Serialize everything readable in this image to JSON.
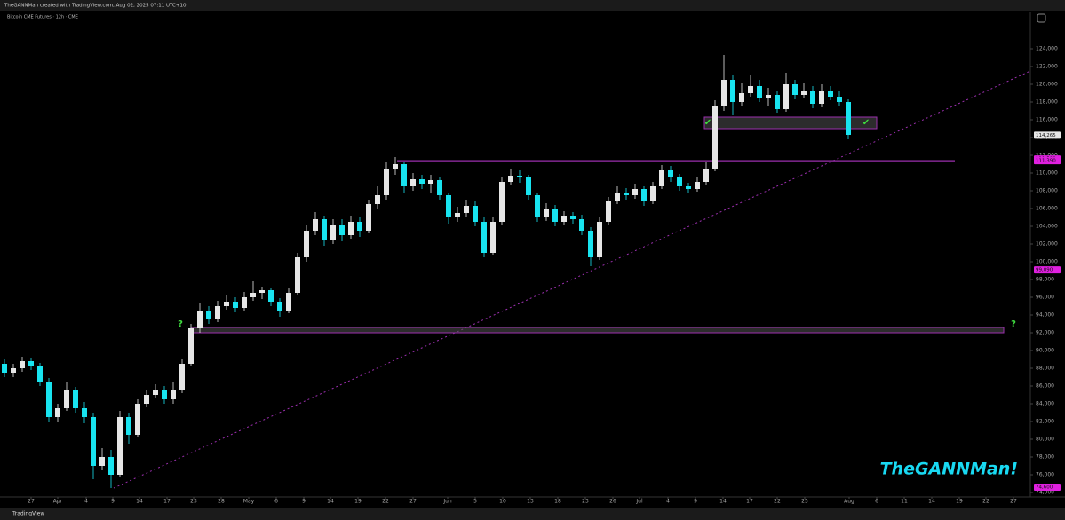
{
  "header": {
    "author_line": "TheGANNMan created with TradingView.com, Aug 02, 2025 07:11 UTC+10",
    "symbol": "Bitcoin CME Futures · 12h · CME"
  },
  "chart_data": {
    "type": "candlestick",
    "up_color": "#e6e6e6",
    "down_color": "#18e4f0",
    "grid": false,
    "xlim": [
      0,
      115.5
    ],
    "ylim": [
      73500,
      125000
    ],
    "open": [
      88500,
      87500,
      88000,
      88800,
      88200,
      86500,
      82500,
      83500,
      85500,
      83500,
      82500,
      77000,
      78000,
      76000,
      82500,
      80500,
      84000,
      85000,
      85500,
      84500,
      85500,
      88500,
      92500,
      94500,
      93500,
      95000,
      95500,
      94800,
      96000,
      96500,
      96800,
      95500,
      94500,
      96500,
      100500,
      103500,
      104800,
      102500,
      104200,
      103000,
      104500,
      103500,
      106500,
      107500,
      110500,
      111000,
      108500,
      109300,
      108800,
      109200,
      107500,
      105000,
      105500,
      106300,
      104500,
      101000,
      104500,
      109000,
      109700,
      109500,
      107500,
      105000,
      106000,
      104500,
      105200,
      104800,
      103500,
      100500,
      104500,
      106800,
      107800,
      107500,
      108200,
      106800,
      108500,
      110300,
      109500,
      108500,
      108200,
      109000,
      110500,
      117500,
      120500,
      118000,
      119000,
      119800,
      118500,
      118800,
      117200,
      120000,
      118800,
      119200,
      117800,
      119300,
      118600,
      118000
    ],
    "high": [
      89000,
      88500,
      89300,
      89200,
      88600,
      86900,
      84000,
      86500,
      85900,
      84200,
      83000,
      79000,
      78800,
      83200,
      83000,
      84500,
      85600,
      86200,
      86000,
      86500,
      89000,
      93000,
      95300,
      95000,
      95600,
      96200,
      96000,
      96600,
      97800,
      97200,
      97000,
      95900,
      97000,
      101000,
      104200,
      105600,
      105200,
      104800,
      104800,
      105200,
      105000,
      107000,
      108500,
      111200,
      111800,
      111300,
      110000,
      109800,
      109800,
      109500,
      107800,
      106200,
      107000,
      106800,
      105000,
      105000,
      109500,
      110500,
      110300,
      109800,
      107800,
      106600,
      106400,
      105700,
      105600,
      105300,
      103900,
      105000,
      107300,
      108500,
      108300,
      108800,
      108500,
      109000,
      110900,
      110800,
      109900,
      108900,
      109500,
      111200,
      118200,
      123300,
      121000,
      120200,
      121000,
      120500,
      119600,
      119300,
      121300,
      120500,
      120200,
      119800,
      120000,
      119800,
      119200,
      118300
    ],
    "low": [
      87000,
      87000,
      87600,
      87800,
      86000,
      82000,
      82000,
      83200,
      83000,
      81800,
      75500,
      76500,
      74500,
      75800,
      79500,
      80200,
      83600,
      84600,
      84000,
      84000,
      85200,
      88200,
      92000,
      93000,
      93200,
      94600,
      94300,
      94500,
      95600,
      95800,
      95000,
      93800,
      94200,
      96200,
      100000,
      103000,
      101800,
      102000,
      102300,
      102600,
      102800,
      103200,
      106000,
      107000,
      109800,
      107800,
      108000,
      108200,
      107800,
      107000,
      104300,
      104500,
      105000,
      104000,
      100500,
      100800,
      104200,
      108600,
      108900,
      107000,
      104500,
      104600,
      104000,
      104100,
      104300,
      103000,
      99500,
      100200,
      104200,
      106500,
      107000,
      107100,
      106300,
      106500,
      108200,
      109000,
      108000,
      107800,
      107900,
      108700,
      110200,
      117000,
      116500,
      117600,
      118600,
      118000,
      117500,
      116800,
      116900,
      118300,
      118400,
      117300,
      117400,
      118200,
      117500,
      113800
    ],
    "close": [
      87500,
      88000,
      88800,
      88200,
      86500,
      82500,
      83500,
      85500,
      83500,
      82500,
      77000,
      78000,
      76000,
      82500,
      80500,
      84000,
      85000,
      85500,
      84500,
      85500,
      88500,
      92500,
      94500,
      93500,
      95000,
      95500,
      94800,
      96000,
      96500,
      96800,
      95500,
      94500,
      96500,
      100500,
      103500,
      104800,
      102500,
      104200,
      103000,
      104500,
      103500,
      106500,
      107500,
      110500,
      111000,
      108500,
      109300,
      108800,
      109200,
      107500,
      105000,
      105500,
      106300,
      104500,
      101000,
      104500,
      109000,
      109700,
      109500,
      107500,
      105000,
      106000,
      104500,
      105200,
      104800,
      103500,
      100500,
      104500,
      106800,
      107800,
      107500,
      108200,
      106800,
      108500,
      110300,
      109500,
      108500,
      108200,
      109000,
      110500,
      117500,
      120500,
      118000,
      119000,
      119800,
      118500,
      118800,
      117200,
      120000,
      118800,
      119200,
      117800,
      119300,
      118600,
      118000,
      114300
    ],
    "yticks": [
      {
        "value": 74000,
        "label": "74,000"
      },
      {
        "value": 76000,
        "label": "76,000"
      },
      {
        "value": 78000,
        "label": "78,000"
      },
      {
        "value": 80000,
        "label": "80,000"
      },
      {
        "value": 82000,
        "label": "82,000"
      },
      {
        "value": 84000,
        "label": "84,000"
      },
      {
        "value": 86000,
        "label": "86,000"
      },
      {
        "value": 88000,
        "label": "88,000"
      },
      {
        "value": 90000,
        "label": "90,000"
      },
      {
        "value": 92000,
        "label": "92,000"
      },
      {
        "value": 94000,
        "label": "94,000"
      },
      {
        "value": 96000,
        "label": "96,000"
      },
      {
        "value": 98000,
        "label": "98,000"
      },
      {
        "value": 100000,
        "label": "100,000"
      },
      {
        "value": 102000,
        "label": "102,000"
      },
      {
        "value": 104000,
        "label": "104,000"
      },
      {
        "value": 106000,
        "label": "106,000"
      },
      {
        "value": 108000,
        "label": "108,000"
      },
      {
        "value": 110000,
        "label": "110,000"
      },
      {
        "value": 112000,
        "label": "112,000"
      },
      {
        "value": 114000,
        "label": "114,000"
      },
      {
        "value": 116000,
        "label": "116,000"
      },
      {
        "value": 118000,
        "label": "118,000"
      },
      {
        "value": 120000,
        "label": "120,000"
      },
      {
        "value": 122000,
        "label": "122,000"
      },
      {
        "value": 124000,
        "label": "124,000"
      }
    ],
    "xticks": [
      {
        "value": 3,
        "label": "27"
      },
      {
        "value": 6,
        "label": "Apr"
      },
      {
        "value": 9.2,
        "label": "4"
      },
      {
        "value": 12.2,
        "label": "9"
      },
      {
        "value": 15.2,
        "label": "14"
      },
      {
        "value": 18.3,
        "label": "17"
      },
      {
        "value": 21.3,
        "label": "23"
      },
      {
        "value": 24.4,
        "label": "28"
      },
      {
        "value": 27.5,
        "label": "May"
      },
      {
        "value": 30.6,
        "label": "6"
      },
      {
        "value": 33.7,
        "label": "9"
      },
      {
        "value": 36.7,
        "label": "14"
      },
      {
        "value": 39.8,
        "label": "19"
      },
      {
        "value": 42.9,
        "label": "22"
      },
      {
        "value": 46,
        "label": "27"
      },
      {
        "value": 49.9,
        "label": "Jun"
      },
      {
        "value": 53,
        "label": "5"
      },
      {
        "value": 56.1,
        "label": "10"
      },
      {
        "value": 59.2,
        "label": "13"
      },
      {
        "value": 62.3,
        "label": "18"
      },
      {
        "value": 65.4,
        "label": "23"
      },
      {
        "value": 68.5,
        "label": "26"
      },
      {
        "value": 71.5,
        "label": "Jul"
      },
      {
        "value": 74.7,
        "label": "4"
      },
      {
        "value": 77.8,
        "label": "9"
      },
      {
        "value": 80.9,
        "label": "14"
      },
      {
        "value": 83.9,
        "label": "17"
      },
      {
        "value": 87,
        "label": "22"
      },
      {
        "value": 90.1,
        "label": "25"
      },
      {
        "value": 95.1,
        "label": "Aug"
      },
      {
        "value": 98.2,
        "label": "6"
      },
      {
        "value": 101.3,
        "label": "11"
      },
      {
        "value": 104.4,
        "label": "14"
      },
      {
        "value": 107.5,
        "label": "19"
      },
      {
        "value": 110.5,
        "label": "22"
      },
      {
        "value": 113.6,
        "label": "27"
      }
    ],
    "price_labels": [
      {
        "value": 114265,
        "label": "114,265",
        "color": "#e6e6e6"
      },
      {
        "value": 111590,
        "label": "111,590",
        "color": "#e020e0"
      },
      {
        "value": 111390,
        "label": "111,390",
        "color": "#e020e0"
      },
      {
        "value": 99090,
        "label": "99,090",
        "color": "#e020e0"
      },
      {
        "value": 74600,
        "label": "74,600",
        "color": "#e020e0"
      }
    ],
    "lines": [
      {
        "value": 111390,
        "x": [
          44.2,
          107
        ],
        "color": "#9b2fae"
      }
    ],
    "zones": [
      {
        "ylim": [
          115000,
          116300
        ],
        "x": [
          78.8,
          98.2
        ],
        "color": "#9b2fae"
      },
      {
        "ylim": [
          92000,
          92600
        ],
        "x": [
          21,
          112.5
        ],
        "color": "#9b2fae"
      }
    ],
    "trendline": {
      "x": [
        12.3,
        115.5
      ],
      "y": [
        74500,
        121500
      ],
      "color": "#9b2fae"
    },
    "marks": [
      {
        "text": "?",
        "x": 19.8,
        "y": 93000,
        "color": "#3fdc3f"
      },
      {
        "text": "?",
        "x": 113.6,
        "y": 93000,
        "color": "#3fdc3f"
      },
      {
        "text": "✔",
        "x": 79.2,
        "y": 115700,
        "color": "#3fdc3f"
      },
      {
        "text": "✔",
        "x": 97,
        "y": 115700,
        "color": "#3fdc3f"
      }
    ],
    "watermark": "TheGANNMan!"
  },
  "footer": {
    "brand": "TradingView"
  }
}
